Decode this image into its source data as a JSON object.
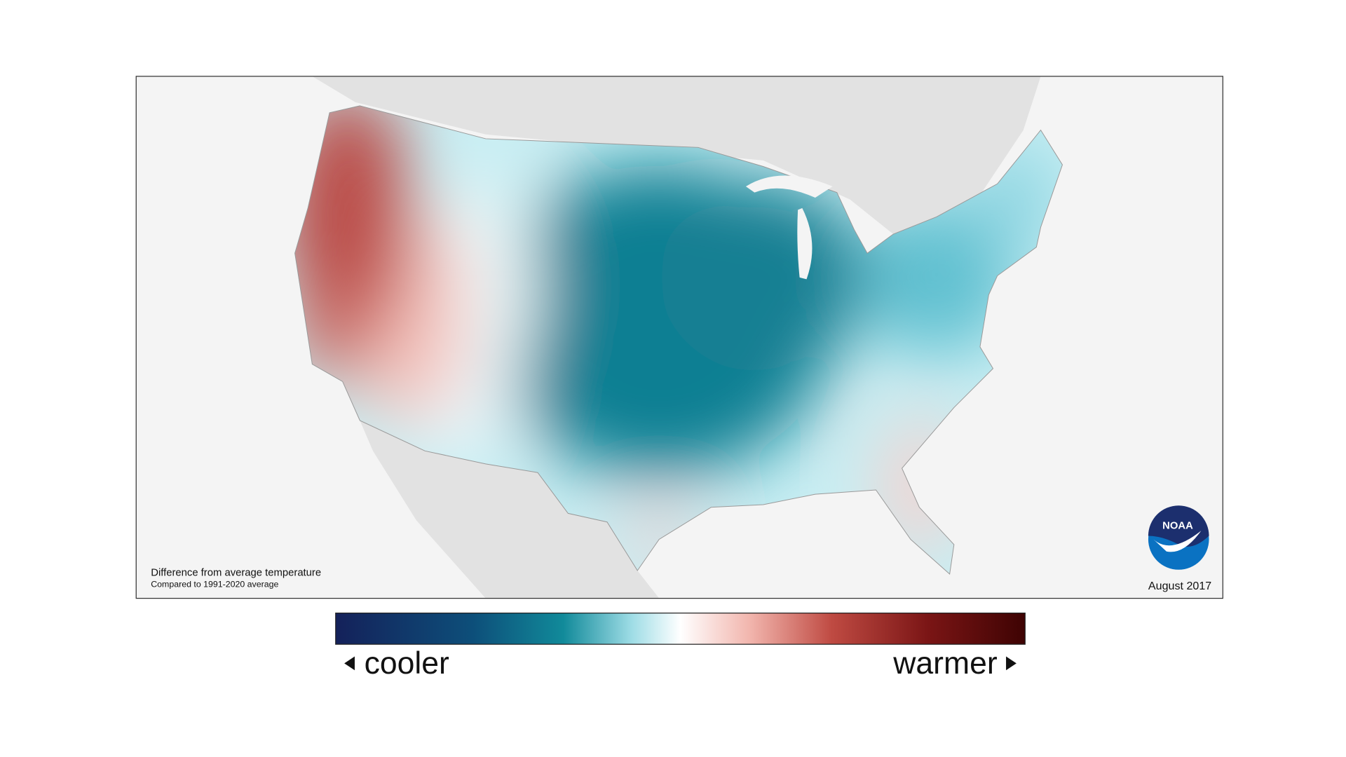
{
  "map": {
    "note_title": "Difference from average temperature",
    "note_subtitle": "Compared to 1991-2020 average",
    "date": "August 2017",
    "logo": "NOAA",
    "legend": {
      "low": "cooler",
      "high": "warmer"
    }
  }
}
